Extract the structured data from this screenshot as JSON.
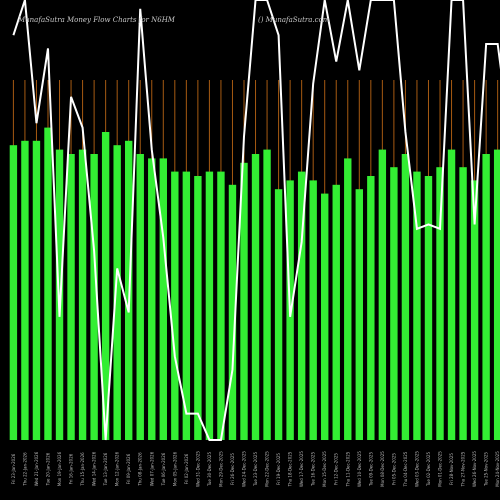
{
  "chart_data": {
    "type": "bar",
    "title": "MunafaSutra  Money Flow  Charts for N6HM",
    "watermark": "() MunafaSutra.com",
    "colors": {
      "background": "#000000",
      "bar": "#33ee33",
      "grid": "#a65a12",
      "line": "#ffffff"
    },
    "categories": [
      "Fri 23-Jan-2026",
      "Thu 22-Jan-2026",
      "Wed 21-Jan-2026",
      "Tue 20-Jan-2026",
      "Mon 19-Jan-2026",
      "Fri 16-Jan-2026",
      "Thu 15-Jan-2026",
      "Wed 14-Jan-2026",
      "Tue 13-Jan-2026",
      "Mon 12-Jan-2026",
      "Fri 09-Jan-2026",
      "Thu 08-Jan-2026",
      "Wed 07-Jan-2026",
      "Tue 06-Jan-2026",
      "Mon 05-Jan-2026",
      "Fri 02-Jan-2026",
      "Wed 31-Dec-2025",
      "Tue 30-Dec-2025",
      "Mon 29-Dec-2025",
      "Fri 26-Dec-2025",
      "Wed 24-Dec-2025",
      "Tue 23-Dec-2025",
      "Mon 22-Dec-2025",
      "Fri 19-Dec-2025",
      "Thu 18-Dec-2025",
      "Wed 17-Dec-2025",
      "Tue 16-Dec-2025",
      "Mon 15-Dec-2025",
      "Fri 12-Dec-2025",
      "Thu 11-Dec-2025",
      "Wed 10-Dec-2025",
      "Tue 09-Dec-2025",
      "Mon 08-Dec-2025",
      "Fri 05-Dec-2025",
      "Thu 04-Dec-2025",
      "Wed 03-Dec-2025",
      "Tue 02-Dec-2025",
      "Mon 01-Dec-2025",
      "Fri 28-Nov-2025",
      "Thu 27-Nov-2025",
      "Wed 26-Nov-2025",
      "Tue 25-Nov-2025",
      "Mon 24-Nov-2025",
      "Fri 21-Nov-2025",
      "Thu 20-Nov-2025"
    ],
    "series": [
      {
        "type": "bar",
        "values": [
          67,
          68,
          68,
          71,
          66,
          65,
          66,
          65,
          70,
          67,
          68,
          65,
          64,
          64,
          61,
          61,
          60,
          61,
          61,
          58,
          63,
          65,
          66,
          57,
          59,
          61,
          59,
          56,
          58,
          64,
          57,
          60,
          66,
          62,
          65,
          61,
          60,
          62,
          66,
          62,
          59,
          65,
          66,
          62,
          56
        ]
      },
      {
        "type": "line",
        "values": [
          92,
          100,
          72,
          89,
          28,
          78,
          71,
          43,
          0,
          39,
          29,
          98,
          66,
          46,
          19,
          6,
          6,
          0,
          0,
          16,
          69,
          100,
          100,
          92,
          28,
          45,
          81,
          100,
          86,
          100,
          84,
          100,
          100,
          100,
          70,
          48,
          49,
          48,
          100,
          100,
          49,
          90,
          90,
          70,
          50
        ]
      }
    ],
    "ylim": [
      0,
      100
    ],
    "grid": true
  }
}
